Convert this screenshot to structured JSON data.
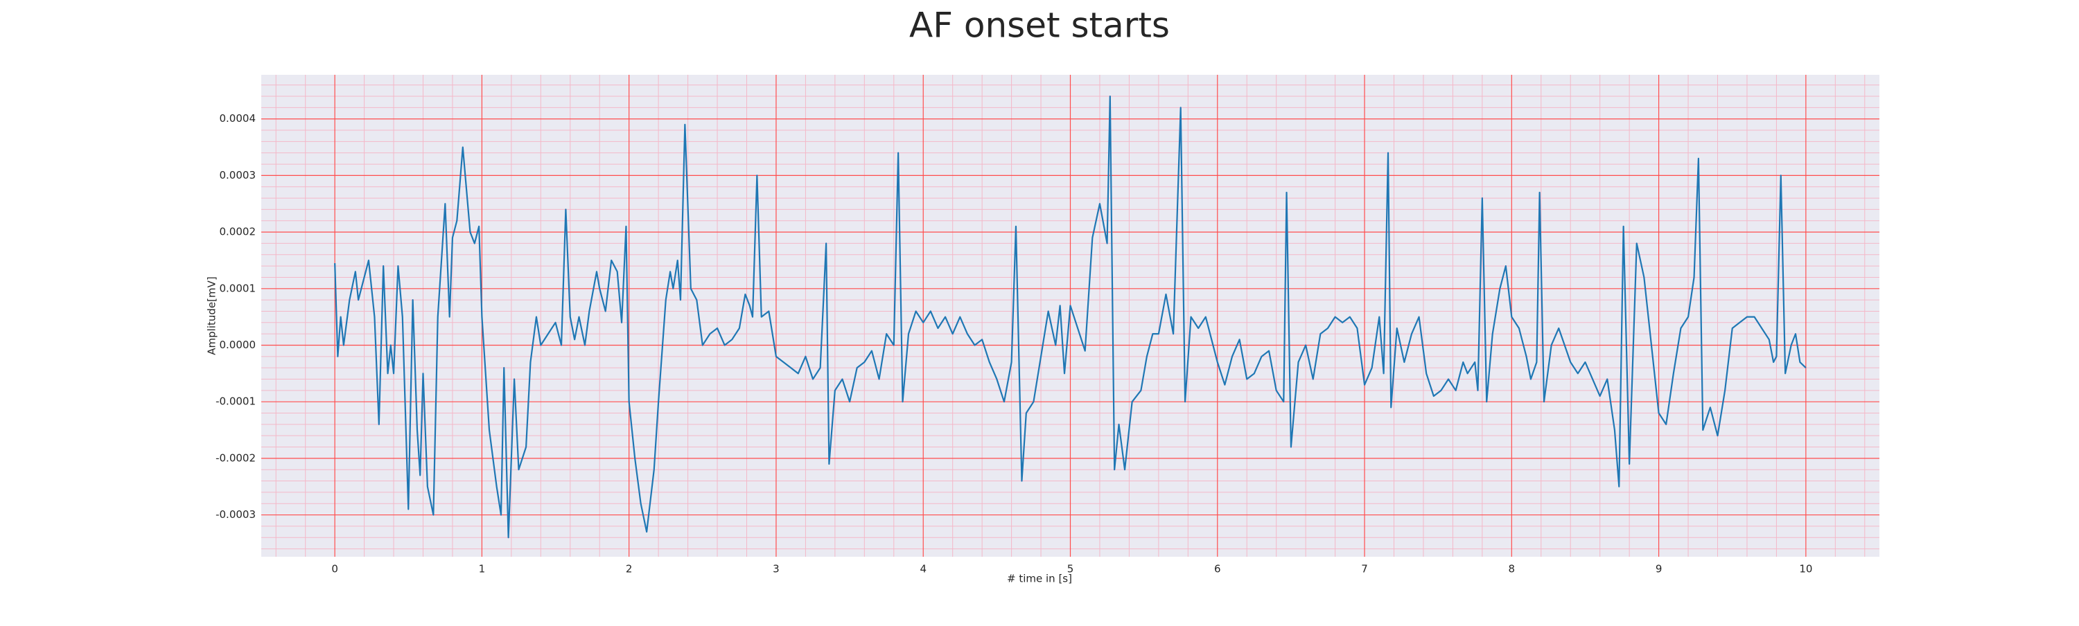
{
  "chart_data": {
    "type": "line",
    "title": "AF onset starts",
    "x_label": "# time in [s]",
    "y_label": "Amplitude[mV]",
    "color": "#1f77b4",
    "background": "#eaeaf2",
    "grid": true,
    "grid_color": "#ff4d4d",
    "minor_grid": 5,
    "minor_grid_color": "#f4b8c8",
    "xlim": [
      -0.5,
      10.5
    ],
    "xticks": [
      0,
      1,
      2,
      3,
      4,
      5,
      6,
      7,
      8,
      9,
      10
    ],
    "ylim": [
      -0.000374,
      0.000478
    ],
    "yticks": [
      -0.0003,
      -0.0002,
      -0.0001,
      {
        "value": 0,
        "label": "0.0000"
      },
      0.0001,
      0.0002,
      0.0003,
      0.0004
    ],
    "x": [
      0,
      0.02,
      0.04,
      0.06,
      0.1,
      0.14,
      0.16,
      0.2,
      0.23,
      0.27,
      0.3,
      0.33,
      0.36,
      0.38,
      0.4,
      0.43,
      0.46,
      0.5,
      0.53,
      0.56,
      0.58,
      0.6,
      0.63,
      0.67,
      0.7,
      0.75,
      0.78,
      0.8,
      0.83,
      0.87,
      0.92,
      0.95,
      0.98,
      1.0,
      1.05,
      1.1,
      1.13,
      1.15,
      1.18,
      1.22,
      1.25,
      1.3,
      1.33,
      1.37,
      1.4,
      1.45,
      1.5,
      1.54,
      1.57,
      1.6,
      1.63,
      1.66,
      1.7,
      1.73,
      1.78,
      1.8,
      1.84,
      1.88,
      1.92,
      1.95,
      1.98,
      2.0,
      2.04,
      2.08,
      2.12,
      2.17,
      2.2,
      2.25,
      2.28,
      2.3,
      2.33,
      2.35,
      2.38,
      2.42,
      2.46,
      2.5,
      2.55,
      2.6,
      2.65,
      2.7,
      2.75,
      2.79,
      2.82,
      2.84,
      2.87,
      2.9,
      2.95,
      3.0,
      3.05,
      3.1,
      3.15,
      3.2,
      3.25,
      3.3,
      3.34,
      3.36,
      3.4,
      3.45,
      3.5,
      3.55,
      3.6,
      3.65,
      3.7,
      3.75,
      3.8,
      3.83,
      3.86,
      3.9,
      3.95,
      4.0,
      4.05,
      4.1,
      4.15,
      4.2,
      4.25,
      4.3,
      4.35,
      4.4,
      4.45,
      4.5,
      4.55,
      4.6,
      4.63,
      4.67,
      4.7,
      4.75,
      4.8,
      4.85,
      4.9,
      4.93,
      4.96,
      5.0,
      5.05,
      5.1,
      5.15,
      5.2,
      5.25,
      5.27,
      5.3,
      5.33,
      5.37,
      5.42,
      5.48,
      5.52,
      5.56,
      5.6,
      5.65,
      5.7,
      5.75,
      5.78,
      5.82,
      5.87,
      5.92,
      5.96,
      6.0,
      6.05,
      6.1,
      6.15,
      6.2,
      6.25,
      6.3,
      6.35,
      6.4,
      6.45,
      6.47,
      6.5,
      6.55,
      6.6,
      6.65,
      6.7,
      6.75,
      6.8,
      6.85,
      6.9,
      6.95,
      7.0,
      7.05,
      7.1,
      7.13,
      7.16,
      7.18,
      7.22,
      7.27,
      7.32,
      7.37,
      7.42,
      7.47,
      7.52,
      7.57,
      7.62,
      7.67,
      7.7,
      7.75,
      7.77,
      7.8,
      7.83,
      7.87,
      7.92,
      7.96,
      8.0,
      8.05,
      8.1,
      8.13,
      8.17,
      8.19,
      8.22,
      8.27,
      8.32,
      8.36,
      8.4,
      8.45,
      8.5,
      8.55,
      8.6,
      8.65,
      8.7,
      8.73,
      8.76,
      8.8,
      8.85,
      8.9,
      8.95,
      9.0,
      9.05,
      9.1,
      9.15,
      9.2,
      9.24,
      9.27,
      9.3,
      9.35,
      9.4,
      9.45,
      9.5,
      9.55,
      9.6,
      9.65,
      9.7,
      9.75,
      9.78,
      9.8,
      9.83,
      9.86,
      9.9,
      9.93,
      9.96,
      10.0
    ],
    "values": [
      0.000145,
      -2e-05,
      5e-05,
      0.0,
      8e-05,
      0.00013,
      8e-05,
      0.00012,
      0.00015,
      5e-05,
      -0.00014,
      0.00014,
      -5e-05,
      0.0,
      -5e-05,
      0.00014,
      5e-05,
      -0.00029,
      8e-05,
      -0.00015,
      -0.00023,
      -5e-05,
      -0.00025,
      -0.0003,
      5e-05,
      0.00025,
      5e-05,
      0.00019,
      0.00022,
      0.00035,
      0.0002,
      0.00018,
      0.00021,
      5e-05,
      -0.00015,
      -0.00025,
      -0.0003,
      -4e-05,
      -0.00034,
      -6e-05,
      -0.00022,
      -0.00018,
      -3e-05,
      5e-05,
      0.0,
      2e-05,
      4e-05,
      0.0,
      0.00024,
      5e-05,
      1e-05,
      5e-05,
      0.0,
      6e-05,
      0.00013,
      0.0001,
      6e-05,
      0.00015,
      0.00013,
      4e-05,
      0.00021,
      -0.0001,
      -0.0002,
      -0.00028,
      -0.00033,
      -0.00022,
      -0.0001,
      8e-05,
      0.00013,
      0.0001,
      0.00015,
      8e-05,
      0.00039,
      0.0001,
      8e-05,
      0.0,
      2e-05,
      3e-05,
      0.0,
      1e-05,
      3e-05,
      9e-05,
      7e-05,
      5e-05,
      0.0003,
      5e-05,
      6e-05,
      -2e-05,
      -3e-05,
      -4e-05,
      -5e-05,
      -2e-05,
      -6e-05,
      -4e-05,
      0.00018,
      -0.00021,
      -8e-05,
      -6e-05,
      -0.0001,
      -4e-05,
      -3e-05,
      -1e-05,
      -6e-05,
      2e-05,
      0.0,
      0.00034,
      -0.0001,
      2e-05,
      6e-05,
      4e-05,
      6e-05,
      3e-05,
      5e-05,
      2e-05,
      5e-05,
      2e-05,
      0.0,
      1e-05,
      -3e-05,
      -6e-05,
      -0.0001,
      -3e-05,
      0.00021,
      -0.00024,
      -0.00012,
      -0.0001,
      -2e-05,
      6e-05,
      0.0,
      7e-05,
      -5e-05,
      7e-05,
      3e-05,
      -1e-05,
      0.00019,
      0.00025,
      0.00018,
      0.00044,
      -0.00022,
      -0.00014,
      -0.00022,
      -0.0001,
      -8e-05,
      -2e-05,
      2e-05,
      2e-05,
      9e-05,
      2e-05,
      0.00042,
      -0.0001,
      5e-05,
      3e-05,
      5e-05,
      1e-05,
      -3e-05,
      -7e-05,
      -2e-05,
      1e-05,
      -6e-05,
      -5e-05,
      -2e-05,
      -1e-05,
      -8e-05,
      -0.0001,
      0.00027,
      -0.00018,
      -3e-05,
      0.0,
      -6e-05,
      2e-05,
      3e-05,
      5e-05,
      4e-05,
      5e-05,
      3e-05,
      -7e-05,
      -4e-05,
      5e-05,
      -5e-05,
      0.00034,
      -0.00011,
      3e-05,
      -3e-05,
      2e-05,
      5e-05,
      -5e-05,
      -9e-05,
      -8e-05,
      -6e-05,
      -8e-05,
      -3e-05,
      -5e-05,
      -3e-05,
      -8e-05,
      0.00026,
      -0.0001,
      2e-05,
      0.0001,
      0.00014,
      5e-05,
      3e-05,
      -2e-05,
      -6e-05,
      -3e-05,
      0.00027,
      -0.0001,
      0.0,
      3e-05,
      0.0,
      -3e-05,
      -5e-05,
      -3e-05,
      -6e-05,
      -9e-05,
      -6e-05,
      -0.00015,
      -0.00025,
      0.00021,
      -0.00021,
      0.00018,
      0.00012,
      0.0,
      -0.00012,
      -0.00014,
      -5e-05,
      3e-05,
      5e-05,
      0.00012,
      0.00033,
      -0.00015,
      -0.00011,
      -0.00016,
      -8e-05,
      3e-05,
      4e-05,
      5e-05,
      5e-05,
      3e-05,
      1e-05,
      -3e-05,
      -2e-05,
      0.0003,
      -5e-05,
      0.0,
      2e-05,
      -3e-05,
      -4e-05
    ]
  }
}
